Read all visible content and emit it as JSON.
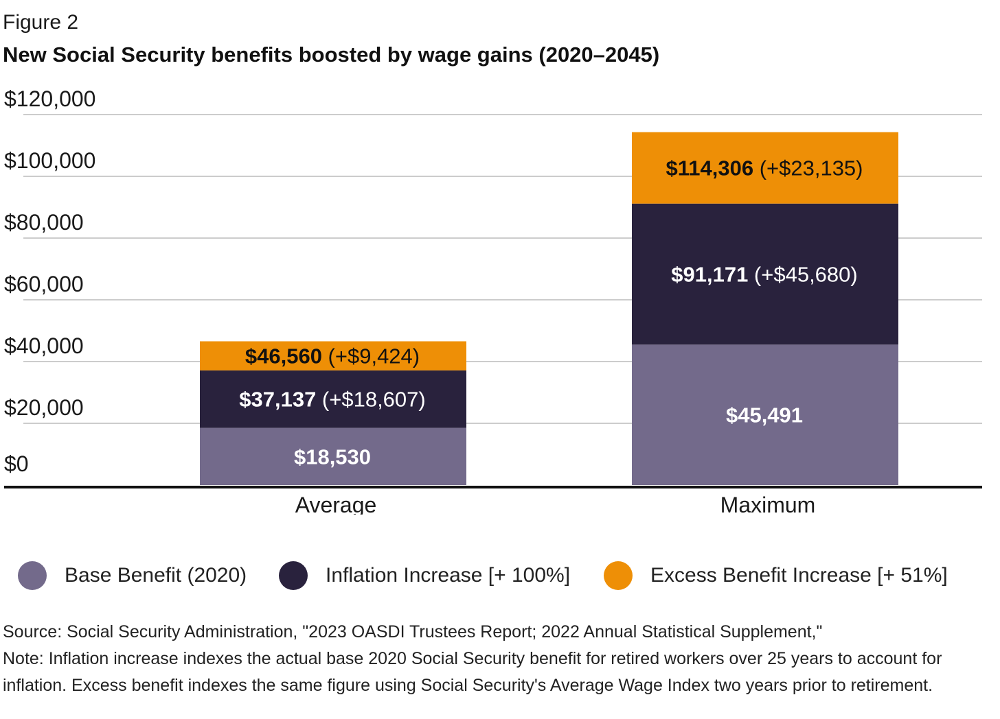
{
  "figure_label": "Figure 2",
  "chart_data": {
    "type": "bar",
    "stacked": true,
    "title": "New Social Security benefits boosted by wage gains (2020–2045)",
    "xlabel": "",
    "ylabel": "",
    "ylim": [
      0,
      120000
    ],
    "yticks": [
      0,
      20000,
      40000,
      60000,
      80000,
      100000,
      120000
    ],
    "ytick_labels": [
      "$0",
      "$20,000",
      "$40,000",
      "$60,000",
      "$80,000",
      "$100,000",
      "$120,000"
    ],
    "grid": true,
    "legend_position": "bottom",
    "categories": [
      "Average",
      "Maximum"
    ],
    "series": [
      {
        "name": "Base Benefit (2020)",
        "color": "#736a8b",
        "values": [
          18530,
          45491
        ],
        "labels": [
          {
            "total": "$18,530",
            "increment": ""
          },
          {
            "total": "$45,491",
            "increment": ""
          }
        ],
        "label_color": "#ffffff"
      },
      {
        "name": "Inflation Increase [+ 100%]",
        "color": "#29223d",
        "values": [
          18607,
          45680
        ],
        "labels": [
          {
            "total": "$37,137",
            "increment": "(+$18,607)"
          },
          {
            "total": "$91,171",
            "increment": "(+$45,680)"
          }
        ],
        "label_color": "#ffffff"
      },
      {
        "name": "Excess Benefit Increase [+ 51%]",
        "color": "#ee8f06",
        "values": [
          9424,
          23135
        ],
        "labels": [
          {
            "total": "$46,560",
            "increment": "(+$9,424)"
          },
          {
            "total": "$114,306",
            "increment": "(+$23,135)"
          }
        ],
        "label_color": "#111111"
      }
    ]
  },
  "notes": {
    "source": "Source: Social Security Administration, \"2023 OASDI Trustees Report; 2022 Annual Statistical Supplement,\"",
    "note": "Note: Inflation increase indexes the actual base 2020 Social Security benefit for retired workers over 25 years to account for inflation. Excess benefit indexes the same figure using Social Security's Average Wage Index two years prior to retirement."
  }
}
